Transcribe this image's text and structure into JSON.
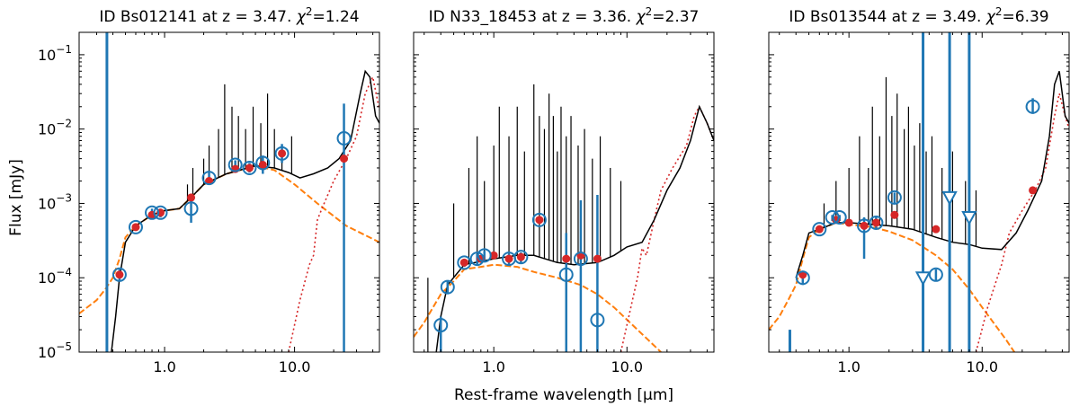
{
  "figure": {
    "xlabel": "Rest-frame wavelength [μm]",
    "ylabel": "Flux [mJy]"
  },
  "colors": {
    "model": "#000000",
    "stellar": "#ff7f0e",
    "dust": "#d62728",
    "obs": "#1f77b4",
    "model_flux": "#d62728"
  },
  "chart_data": [
    {
      "type": "line",
      "id": "Bs012141",
      "title": "ID Bs012141 at z = 3.47. χ²=1.24",
      "title_main": "ID Bs012141 at z = 3.47. ",
      "title_chi": "χ",
      "title_chi_exp": "2",
      "title_chi_val": "=1.24",
      "xscale": "log",
      "yscale": "log",
      "xlim": [
        0.22,
        45
      ],
      "ylim": [
        1e-05,
        0.2
      ],
      "xticks": [
        1.0,
        10.0
      ],
      "xticklabels": [
        "1.0",
        "10.0"
      ],
      "show_yticklabels": true,
      "yticks": [
        1e-05,
        0.0001,
        0.001,
        0.01,
        0.1
      ],
      "yticklabels": [
        [
          "10",
          "−5"
        ],
        [
          "10",
          "−4"
        ],
        [
          "10",
          "−3"
        ],
        [
          "10",
          "−2"
        ],
        [
          "10",
          "−1"
        ]
      ],
      "stellar": [
        [
          0.22,
          3.3e-05
        ],
        [
          0.3,
          5e-05
        ],
        [
          0.35,
          7e-05
        ],
        [
          0.4,
          0.0001
        ],
        [
          0.45,
          0.00018
        ],
        [
          0.5,
          0.00035
        ],
        [
          0.6,
          0.0005
        ],
        [
          0.8,
          0.0007
        ],
        [
          1.0,
          0.0008
        ],
        [
          1.3,
          0.00085
        ],
        [
          1.6,
          0.0012
        ],
        [
          2.0,
          0.0018
        ],
        [
          3.0,
          0.0025
        ],
        [
          5.0,
          0.0032
        ],
        [
          7.0,
          0.0028
        ],
        [
          10.0,
          0.0018
        ],
        [
          15.0,
          0.001
        ],
        [
          25.0,
          0.0005
        ],
        [
          45.0,
          0.0003
        ]
      ],
      "dust": [
        [
          9.0,
          1e-05
        ],
        [
          11.0,
          5e-05
        ],
        [
          13.0,
          0.00015
        ],
        [
          14.0,
          0.0002
        ],
        [
          15.0,
          0.0006
        ],
        [
          16.0,
          0.0008
        ],
        [
          20.0,
          0.002
        ],
        [
          25.0,
          0.004
        ],
        [
          30.0,
          0.008
        ],
        [
          35.0,
          0.03
        ],
        [
          40.0,
          0.05
        ],
        [
          45.0,
          0.018
        ]
      ],
      "model": [
        [
          0.39,
          1e-05
        ],
        [
          0.42,
          3e-05
        ],
        [
          0.45,
          0.0001
        ],
        [
          0.5,
          0.0003
        ],
        [
          0.6,
          0.0005
        ],
        [
          0.8,
          0.0007
        ],
        [
          1.0,
          0.0008
        ],
        [
          1.3,
          0.00085
        ],
        [
          1.6,
          0.0012
        ],
        [
          2.0,
          0.0018
        ],
        [
          3.0,
          0.0025
        ],
        [
          5.0,
          0.0032
        ],
        [
          7.0,
          0.003
        ],
        [
          9.0,
          0.0026
        ],
        [
          11.0,
          0.0022
        ],
        [
          14.0,
          0.0025
        ],
        [
          18.0,
          0.003
        ],
        [
          22.0,
          0.004
        ],
        [
          27.0,
          0.007
        ],
        [
          32.0,
          0.03
        ],
        [
          35.0,
          0.06
        ],
        [
          38.0,
          0.05
        ],
        [
          42.0,
          0.015
        ],
        [
          45.0,
          0.012
        ]
      ],
      "lines": [
        [
          1.5,
          0.0018
        ],
        [
          1.65,
          0.003
        ],
        [
          2.0,
          0.004
        ],
        [
          2.2,
          0.006
        ],
        [
          2.6,
          0.01
        ],
        [
          2.9,
          0.04
        ],
        [
          3.3,
          0.02
        ],
        [
          3.7,
          0.015
        ],
        [
          4.2,
          0.01
        ],
        [
          4.8,
          0.02
        ],
        [
          5.5,
          0.012
        ],
        [
          6.2,
          0.03
        ],
        [
          7.0,
          0.01
        ],
        [
          8.0,
          0.006
        ],
        [
          9.5,
          0.008
        ]
      ],
      "model_flux": [
        [
          0.45,
          0.00011
        ],
        [
          0.6,
          0.00048
        ],
        [
          0.8,
          0.0007
        ],
        [
          0.93,
          0.00075
        ],
        [
          1.6,
          0.0012
        ],
        [
          2.2,
          0.002
        ],
        [
          3.5,
          0.0029
        ],
        [
          4.5,
          0.003
        ],
        [
          5.7,
          0.0033
        ],
        [
          8.0,
          0.0047
        ],
        [
          24.0,
          0.004
        ]
      ],
      "obs": [
        [
          0.45,
          0.00011,
          0.00013,
          9e-05
        ],
        [
          0.6,
          0.00048,
          0.00052,
          0.00044
        ],
        [
          0.8,
          0.00075,
          0.00085,
          0.00065
        ],
        [
          0.93,
          0.00075,
          0.00085,
          0.00065
        ],
        [
          1.6,
          0.00085,
          0.0013,
          0.00055
        ],
        [
          2.2,
          0.0022,
          0.0026,
          0.0019
        ],
        [
          3.5,
          0.0033,
          0.0038,
          0.0029
        ],
        [
          4.5,
          0.003,
          0.0035,
          0.0026
        ],
        [
          5.7,
          0.0035,
          0.0044,
          0.0025
        ],
        [
          8.0,
          0.0047,
          0.0063,
          0.0035
        ],
        [
          24.0,
          0.0075,
          0.022,
          1e-05
        ]
      ],
      "obs_upper": [],
      "vbars": [
        [
          0.36,
          1e-05,
          0.2
        ]
      ]
    },
    {
      "type": "line",
      "id": "N33_18453",
      "title": "ID N33_18453 at z = 3.36. χ²=2.37",
      "title_main": "ID N33_18453 at z = 3.36. ",
      "title_chi": "χ",
      "title_chi_exp": "2",
      "title_chi_val": "=2.37",
      "xscale": "log",
      "yscale": "log",
      "xlim": [
        0.25,
        45
      ],
      "ylim": [
        1e-05,
        0.2
      ],
      "xticks": [
        1.0,
        10.0
      ],
      "xticklabels": [
        "1.0",
        "10.0"
      ],
      "show_yticklabels": false,
      "yticks": [
        1e-05,
        0.0001,
        0.001,
        0.01,
        0.1
      ],
      "yticklabels": [],
      "stellar": [
        [
          0.25,
          1.6e-05
        ],
        [
          0.3,
          2.5e-05
        ],
        [
          0.35,
          4e-05
        ],
        [
          0.4,
          6e-05
        ],
        [
          0.5,
          9e-05
        ],
        [
          0.6,
          0.00013
        ],
        [
          0.8,
          0.00014
        ],
        [
          1.0,
          0.00015
        ],
        [
          1.5,
          0.00014
        ],
        [
          2.0,
          0.00012
        ],
        [
          3.0,
          0.0001
        ],
        [
          4.5,
          8e-05
        ],
        [
          6.0,
          6e-05
        ],
        [
          8.0,
          4e-05
        ],
        [
          12.0,
          2e-05
        ],
        [
          18.0,
          1e-05
        ],
        [
          25.0,
          5e-06
        ]
      ],
      "dust": [
        [
          9.0,
          1e-05
        ],
        [
          11.0,
          5e-05
        ],
        [
          12.0,
          0.0001
        ],
        [
          13.0,
          0.00025
        ],
        [
          14.0,
          0.0002
        ],
        [
          16.0,
          0.0006
        ],
        [
          18.0,
          0.0015
        ],
        [
          22.0,
          0.003
        ],
        [
          28.0,
          0.006
        ],
        [
          32.0,
          0.015
        ],
        [
          35.0,
          0.02
        ],
        [
          40.0,
          0.012
        ],
        [
          45.0,
          0.007
        ]
      ],
      "model": [
        [
          0.37,
          1e-05
        ],
        [
          0.4,
          3e-05
        ],
        [
          0.45,
          8e-05
        ],
        [
          0.6,
          0.00015
        ],
        [
          1.0,
          0.00018
        ],
        [
          1.5,
          0.0002
        ],
        [
          2.0,
          0.0002
        ],
        [
          3.0,
          0.00016
        ],
        [
          4.0,
          0.00015
        ],
        [
          6.0,
          0.00016
        ],
        [
          8.0,
          0.0002
        ],
        [
          10.0,
          0.00026
        ],
        [
          13.0,
          0.0003
        ],
        [
          16.0,
          0.0006
        ],
        [
          20.0,
          0.0015
        ],
        [
          25.0,
          0.003
        ],
        [
          30.0,
          0.007
        ],
        [
          35.0,
          0.02
        ],
        [
          40.0,
          0.012
        ],
        [
          45.0,
          0.007
        ]
      ],
      "lines": [
        [
          0.32,
          0.0001
        ],
        [
          0.5,
          0.001
        ],
        [
          0.65,
          0.003
        ],
        [
          0.75,
          0.008
        ],
        [
          0.85,
          0.002
        ],
        [
          1.0,
          0.006
        ],
        [
          1.1,
          0.02
        ],
        [
          1.3,
          0.008
        ],
        [
          1.5,
          0.02
        ],
        [
          1.7,
          0.005
        ],
        [
          2.0,
          0.04
        ],
        [
          2.2,
          0.015
        ],
        [
          2.4,
          0.01
        ],
        [
          2.6,
          0.03
        ],
        [
          2.8,
          0.015
        ],
        [
          3.0,
          0.005
        ],
        [
          3.2,
          0.02
        ],
        [
          3.5,
          0.008
        ],
        [
          3.8,
          0.015
        ],
        [
          4.3,
          0.006
        ],
        [
          4.8,
          0.01
        ],
        [
          5.5,
          0.004
        ],
        [
          6.3,
          0.008
        ],
        [
          7.5,
          0.003
        ],
        [
          9.0,
          0.002
        ]
      ],
      "model_flux": [
        [
          0.6,
          0.00016
        ],
        [
          0.8,
          0.00018
        ],
        [
          1.0,
          0.0002
        ],
        [
          1.3,
          0.00018
        ],
        [
          1.6,
          0.00019
        ],
        [
          2.2,
          0.0006
        ],
        [
          3.5,
          0.00018
        ],
        [
          4.5,
          0.0002
        ],
        [
          6.0,
          0.00018
        ]
      ],
      "obs": [
        [
          0.4,
          2.3e-05,
          3e-05,
          1e-05
        ],
        [
          0.45,
          7.5e-05,
          9e-05,
          6e-05
        ],
        [
          0.6,
          0.00016,
          0.00018,
          0.00014
        ],
        [
          0.75,
          0.00018,
          0.00021,
          0.00015
        ],
        [
          0.85,
          0.0002,
          0.00023,
          0.00017
        ],
        [
          1.3,
          0.00018,
          0.00021,
          0.00015
        ],
        [
          1.6,
          0.00019,
          0.00022,
          0.00016
        ],
        [
          2.2,
          0.0006,
          0.00065,
          0.00055
        ],
        [
          3.5,
          0.00011,
          0.0004,
          1e-05
        ],
        [
          4.5,
          0.00018,
          0.0011,
          1e-05
        ],
        [
          6.0,
          2.7e-05,
          0.0013,
          1e-05
        ]
      ],
      "obs_upper": [],
      "vbars": []
    },
    {
      "type": "line",
      "id": "Bs013544",
      "title": "ID Bs013544 at z = 3.49. χ²=6.39",
      "title_main": "ID Bs013544 at z = 3.49. ",
      "title_chi": "χ",
      "title_chi_exp": "2",
      "title_chi_val": "=6.39",
      "xscale": "log",
      "yscale": "log",
      "xlim": [
        0.25,
        45
      ],
      "ylim": [
        1e-05,
        0.2
      ],
      "xticks": [
        1.0,
        10.0
      ],
      "xticklabels": [
        "1.0",
        "10.0"
      ],
      "show_yticklabels": false,
      "yticks": [
        1e-05,
        0.0001,
        0.001,
        0.01,
        0.1
      ],
      "yticklabels": [],
      "stellar": [
        [
          0.25,
          2e-05
        ],
        [
          0.3,
          3e-05
        ],
        [
          0.35,
          5e-05
        ],
        [
          0.4,
          8e-05
        ],
        [
          0.45,
          0.00018
        ],
        [
          0.5,
          0.00035
        ],
        [
          0.6,
          0.00045
        ],
        [
          0.8,
          0.00055
        ],
        [
          1.0,
          0.00052
        ],
        [
          1.5,
          0.00048
        ],
        [
          2.0,
          0.00042
        ],
        [
          3.0,
          0.00032
        ],
        [
          4.5,
          0.0002
        ],
        [
          6.0,
          0.00013
        ],
        [
          8.0,
          7e-05
        ],
        [
          10.0,
          4e-05
        ],
        [
          15.0,
          1.5e-05
        ],
        [
          20.0,
          7e-06
        ]
      ],
      "dust": [
        [
          9.0,
          1e-05
        ],
        [
          11.0,
          4e-05
        ],
        [
          13.0,
          0.0001
        ],
        [
          14.0,
          0.00015
        ],
        [
          16.0,
          0.0004
        ],
        [
          20.0,
          0.0008
        ],
        [
          25.0,
          0.0015
        ],
        [
          30.0,
          0.003
        ],
        [
          35.0,
          0.015
        ],
        [
          38.0,
          0.03
        ],
        [
          42.0,
          0.015
        ],
        [
          45.0,
          0.01
        ]
      ],
      "model": [
        [
          0.4,
          0.0001
        ],
        [
          0.45,
          0.0002
        ],
        [
          0.5,
          0.0004
        ],
        [
          0.6,
          0.00045
        ],
        [
          0.8,
          0.00055
        ],
        [
          1.0,
          0.00055
        ],
        [
          1.5,
          0.00052
        ],
        [
          2.0,
          0.0005
        ],
        [
          3.0,
          0.00045
        ],
        [
          4.5,
          0.00035
        ],
        [
          6.0,
          0.0003
        ],
        [
          8.0,
          0.00028
        ],
        [
          10.0,
          0.00025
        ],
        [
          14.0,
          0.00024
        ],
        [
          18.0,
          0.0004
        ],
        [
          22.0,
          0.0008
        ],
        [
          28.0,
          0.002
        ],
        [
          32.0,
          0.008
        ],
        [
          35.0,
          0.04
        ],
        [
          38.0,
          0.06
        ],
        [
          42.0,
          0.015
        ],
        [
          45.0,
          0.012
        ]
      ],
      "lines": [
        [
          0.65,
          0.001
        ],
        [
          0.8,
          0.002
        ],
        [
          1.0,
          0.003
        ],
        [
          1.2,
          0.008
        ],
        [
          1.4,
          0.003
        ],
        [
          1.5,
          0.02
        ],
        [
          1.7,
          0.008
        ],
        [
          1.9,
          0.05
        ],
        [
          2.1,
          0.015
        ],
        [
          2.3,
          0.03
        ],
        [
          2.6,
          0.01
        ],
        [
          2.8,
          0.02
        ],
        [
          3.1,
          0.006
        ],
        [
          3.4,
          0.012
        ],
        [
          3.8,
          0.005
        ],
        [
          4.2,
          0.008
        ],
        [
          5.0,
          0.003
        ],
        [
          6.0,
          0.005
        ],
        [
          7.5,
          0.002
        ],
        [
          9.0,
          0.0015
        ]
      ],
      "model_flux": [
        [
          0.45,
          0.00011
        ],
        [
          0.6,
          0.00045
        ],
        [
          0.8,
          0.0006
        ],
        [
          1.0,
          0.00055
        ],
        [
          1.3,
          0.0005
        ],
        [
          1.6,
          0.00055
        ],
        [
          2.2,
          0.0007
        ],
        [
          4.5,
          0.00045
        ],
        [
          24.0,
          0.0015
        ]
      ],
      "obs": [
        [
          0.45,
          0.0001,
          0.00012,
          8e-05
        ],
        [
          0.6,
          0.00045,
          0.0005,
          0.0004
        ],
        [
          0.75,
          0.00065,
          0.0007,
          0.00058
        ],
        [
          0.85,
          0.00065,
          0.0007,
          0.00058
        ],
        [
          1.3,
          0.0005,
          0.00065,
          0.00018
        ],
        [
          1.6,
          0.00055,
          0.00065,
          0.00045
        ],
        [
          2.2,
          0.0012,
          0.0014,
          0.001
        ],
        [
          4.5,
          0.00011,
          0.00013,
          9e-05
        ],
        [
          24.0,
          0.02,
          0.026,
          0.016
        ]
      ],
      "obs_upper": [
        [
          3.6,
          0.0001
        ],
        [
          5.7,
          0.0012
        ],
        [
          8.0,
          0.00065
        ]
      ],
      "vbars": [
        [
          0.36,
          1e-05,
          2e-05
        ],
        [
          3.6,
          1e-05,
          0.2
        ],
        [
          5.7,
          1e-05,
          0.2
        ],
        [
          8.0,
          1e-05,
          0.2
        ]
      ]
    }
  ]
}
